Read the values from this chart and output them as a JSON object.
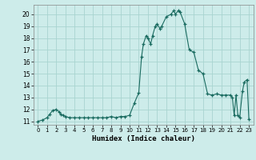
{
  "xlabel": "Humidex (Indice chaleur)",
  "background_color": "#cdecea",
  "grid_color": "#a8d4d0",
  "line_color": "#1a6b60",
  "marker_color": "#1a6b60",
  "xlim": [
    -0.5,
    23.5
  ],
  "ylim": [
    10.7,
    20.8
  ],
  "yticks": [
    11,
    12,
    13,
    14,
    15,
    16,
    17,
    18,
    19,
    20
  ],
  "xticks": [
    0,
    1,
    2,
    3,
    4,
    5,
    6,
    7,
    8,
    9,
    10,
    11,
    12,
    13,
    14,
    15,
    16,
    17,
    18,
    19,
    20,
    21,
    22,
    23
  ],
  "x": [
    0,
    0.5,
    1,
    1.3,
    1.6,
    2,
    2.3,
    2.5,
    2.8,
    3,
    3.5,
    4,
    4.5,
    5,
    5.5,
    6,
    6.5,
    7,
    7.5,
    8,
    8.5,
    9,
    9.5,
    10,
    10.5,
    11,
    11.3,
    11.5,
    11.8,
    12,
    12.3,
    12.5,
    12.8,
    13,
    13.3,
    13.5,
    14,
    14.5,
    14.8,
    15,
    15.3,
    15.5,
    16,
    16.5,
    17,
    17.5,
    18,
    18.5,
    19,
    19.5,
    20,
    20.5,
    21,
    21.2,
    21.4,
    21.6,
    21.8,
    22,
    22.3,
    22.5,
    22.8,
    23
  ],
  "y": [
    11.0,
    11.1,
    11.3,
    11.6,
    11.9,
    12.0,
    11.8,
    11.6,
    11.5,
    11.4,
    11.3,
    11.3,
    11.3,
    11.3,
    11.3,
    11.3,
    11.3,
    11.3,
    11.3,
    11.4,
    11.3,
    11.4,
    11.4,
    11.5,
    12.5,
    13.4,
    16.4,
    17.5,
    18.2,
    18.0,
    17.5,
    18.2,
    19.0,
    19.2,
    18.8,
    19.0,
    19.8,
    20.0,
    20.3,
    20.0,
    20.3,
    20.2,
    19.2,
    17.0,
    16.8,
    15.3,
    15.0,
    13.3,
    13.2,
    13.3,
    13.2,
    13.2,
    13.2,
    13.0,
    11.5,
    13.2,
    11.5,
    11.3,
    13.5,
    14.3,
    14.5,
    11.2
  ]
}
